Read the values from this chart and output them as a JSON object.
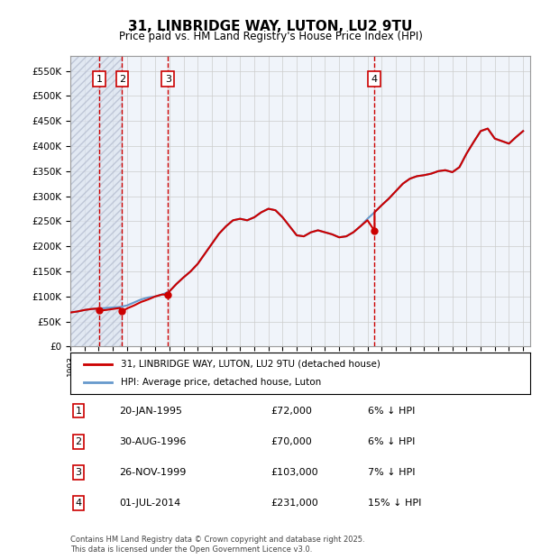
{
  "title_line1": "31, LINBRIDGE WAY, LUTON, LU2 9TU",
  "title_line2": "Price paid vs. HM Land Registry's House Price Index (HPI)",
  "ylabel": "",
  "ylim": [
    0,
    580000
  ],
  "yticks": [
    0,
    50000,
    100000,
    150000,
    200000,
    250000,
    300000,
    350000,
    400000,
    450000,
    500000,
    550000
  ],
  "ytick_labels": [
    "£0",
    "£50K",
    "£100K",
    "£150K",
    "£200K",
    "£250K",
    "£300K",
    "£350K",
    "£400K",
    "£450K",
    "£500K",
    "£550K"
  ],
  "sale_color": "#cc0000",
  "hpi_color": "#6699cc",
  "hatch_color": "#d0d8e8",
  "bg_color": "#ffffff",
  "plot_bg": "#f0f4fa",
  "grid_color": "#cccccc",
  "legend_label_sale": "31, LINBRIDGE WAY, LUTON, LU2 9TU (detached house)",
  "legend_label_hpi": "HPI: Average price, detached house, Luton",
  "footer": "Contains HM Land Registry data © Crown copyright and database right 2025.\nThis data is licensed under the Open Government Licence v3.0.",
  "transactions": [
    {
      "num": 1,
      "date": "20-JAN-1995",
      "price": 72000,
      "pct": "6%",
      "year": 1995.05
    },
    {
      "num": 2,
      "date": "30-AUG-1996",
      "price": 70000,
      "pct": "6%",
      "year": 1996.66
    },
    {
      "num": 3,
      "date": "26-NOV-1999",
      "price": 103000,
      "pct": "7%",
      "year": 1999.9
    },
    {
      "num": 4,
      "date": "01-JUL-2014",
      "price": 231000,
      "pct": "15%",
      "year": 2014.5
    }
  ],
  "hpi_data": {
    "years": [
      1993,
      1993.5,
      1994,
      1994.5,
      1995,
      1995.5,
      1996,
      1996.5,
      1997,
      1997.5,
      1998,
      1998.5,
      1999,
      1999.5,
      2000,
      2000.5,
      2001,
      2001.5,
      2002,
      2002.5,
      2003,
      2003.5,
      2004,
      2004.5,
      2005,
      2005.5,
      2006,
      2006.5,
      2007,
      2007.5,
      2008,
      2008.5,
      2009,
      2009.5,
      2010,
      2010.5,
      2011,
      2011.5,
      2012,
      2012.5,
      2013,
      2013.5,
      2014,
      2014.5,
      2015,
      2015.5,
      2016,
      2016.5,
      2017,
      2017.5,
      2018,
      2018.5,
      2019,
      2019.5,
      2020,
      2020.5,
      2021,
      2021.5,
      2022,
      2022.5,
      2023,
      2023.5,
      2024,
      2024.5,
      2025
    ],
    "values": [
      68000,
      70000,
      73000,
      75000,
      76000,
      77000,
      78000,
      79000,
      82000,
      88000,
      94000,
      98000,
      100000,
      104000,
      110000,
      125000,
      138000,
      150000,
      165000,
      185000,
      205000,
      225000,
      240000,
      252000,
      255000,
      252000,
      258000,
      268000,
      275000,
      272000,
      258000,
      240000,
      222000,
      220000,
      228000,
      232000,
      228000,
      224000,
      218000,
      220000,
      228000,
      240000,
      255000,
      268000,
      282000,
      295000,
      310000,
      325000,
      335000,
      340000,
      342000,
      345000,
      350000,
      352000,
      348000,
      358000,
      385000,
      408000,
      430000,
      435000,
      415000,
      410000,
      405000,
      418000,
      430000
    ]
  },
  "sale_hpi_line": {
    "years": [
      1993,
      1993.5,
      1994,
      1994.5,
      1995,
      1995.05,
      1995.5,
      1996,
      1996.5,
      1996.66,
      1997,
      1997.5,
      1998,
      1998.5,
      1999,
      1999.5,
      1999.9,
      2000,
      2000.5,
      2001,
      2001.5,
      2002,
      2002.5,
      2003,
      2003.5,
      2004,
      2004.5,
      2005,
      2005.5,
      2006,
      2006.5,
      2007,
      2007.5,
      2008,
      2008.5,
      2009,
      2009.5,
      2010,
      2010.5,
      2011,
      2011.5,
      2012,
      2012.5,
      2013,
      2013.5,
      2014,
      2014.5,
      2014.5,
      2015,
      2015.5,
      2016,
      2016.5,
      2017,
      2017.5,
      2018,
      2018.5,
      2019,
      2019.5,
      2020,
      2020.5,
      2021,
      2021.5,
      2022,
      2022.5,
      2023,
      2023.5,
      2024,
      2024.5,
      2025
    ],
    "values": [
      68000,
      70000,
      73000,
      75000,
      76000,
      72000,
      73000,
      75000,
      77000,
      70000,
      76000,
      82000,
      89000,
      94000,
      100000,
      104000,
      103000,
      110000,
      125000,
      138000,
      150000,
      165000,
      185000,
      205000,
      225000,
      240000,
      252000,
      255000,
      252000,
      258000,
      268000,
      275000,
      272000,
      258000,
      240000,
      222000,
      220000,
      228000,
      232000,
      228000,
      224000,
      218000,
      220000,
      228000,
      240000,
      252000,
      231000,
      268000,
      282000,
      295000,
      310000,
      325000,
      335000,
      340000,
      342000,
      345000,
      350000,
      352000,
      348000,
      358000,
      385000,
      408000,
      430000,
      435000,
      415000,
      410000,
      405000,
      418000,
      430000
    ]
  },
  "xmin": 1993,
  "xmax": 2025.5,
  "hatch_region_end": 1996.66
}
